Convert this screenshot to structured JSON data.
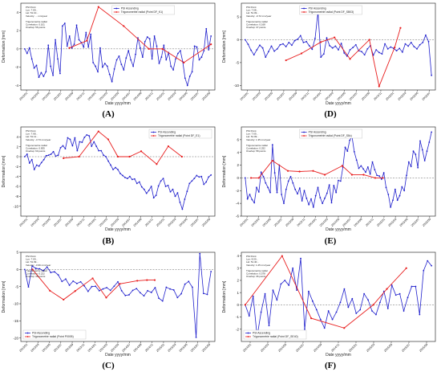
{
  "figure": {
    "colors": {
      "psi": "#1f1fcc",
      "trig": "#e81c1c",
      "zero": "#666666"
    },
    "common": {
      "xlabel": "Date yyyy/mm",
      "ylabel": "Deformation [mm]",
      "legend_psi": "PSI Ascending"
    }
  },
  "chart_data": [
    {
      "id": "A",
      "letter": "(A)",
      "type": "line",
      "legend_trig": "Trigonometrie radial (Point DF_K1)",
      "legend_place": "top-center",
      "ylim": [
        -4.5,
        5
      ],
      "yticks": [
        4,
        2,
        0,
        -2,
        -4
      ],
      "xticks": [
        "2013/01",
        "2013/03",
        "2013/05",
        "2013/07",
        "2013/09",
        "2013/11",
        "2014/01",
        "2014/03",
        "2014/05",
        "2014/07",
        "2014/09",
        "2014/11",
        "2015/01",
        "2015/03",
        "2015/05",
        "2015/07",
        "2015/09"
      ],
      "info": [
        "PSI Point",
        "Lon: 7.69...",
        "Lat: 51.10...",
        "Velocity: ... mm/year",
        "",
        "Trigonometrie radial",
        "Correlation: 0.101",
        "Overlap: 56 points"
      ],
      "series": [
        {
          "name": "PSI Ascending",
          "y": [
            0,
            -0.5,
            0.1,
            -1.1,
            -2.1,
            -1.8,
            -3.1,
            -2.6,
            -3.0,
            -2.5,
            0.4,
            -1.9,
            -2.9,
            1.0,
            -1.1,
            -2.7,
            2.5,
            2.8,
            0.3,
            1.4,
            0.1,
            0.5,
            2.6,
            1.0,
            0.7,
            0.2,
            1.8,
            0.2,
            1.6,
            -1.5,
            -1.9,
            -2.5,
            0.1,
            -2.0,
            -1.6,
            -1.9,
            -2.8,
            -3.6,
            -2.2,
            -1.2,
            -0.8,
            -1.7,
            -2.3,
            -1.0,
            -0.2,
            -1.2,
            -1.9,
            -0.6,
            1.2,
            0.1,
            -0.9,
            0.8,
            1.3,
            1.1,
            -1.1,
            1.4,
            0.3,
            -1.6,
            -0.9,
            0.4,
            -1.2,
            -0.4,
            -1.9,
            -2.3,
            -1.1,
            -0.5,
            -0.2,
            -1.4,
            -3.2,
            -4.0,
            -3.0,
            -2.5,
            0.3,
            0.2,
            -1.2,
            -0.9,
            -0.2,
            2.2,
            -0.1,
            1.4
          ]
        },
        {
          "name": "Trigonometrie radial (Point DF_K1)",
          "t": [
            0.25,
            0.34,
            0.4,
            0.53,
            0.66,
            0.73,
            0.84,
            0.98
          ],
          "y": [
            0.1,
            0.9,
            4.6,
            2.5,
            0,
            0,
            -1.5,
            0.5
          ]
        }
      ]
    },
    {
      "id": "D",
      "letter": "(D)",
      "type": "line",
      "legend_trig": "Trigonometrie radial (Point DF_SB03)",
      "legend_place": "top-left",
      "ylim": [
        -11,
        8
      ],
      "yticks": [
        5,
        0,
        -5,
        -10
      ],
      "xticks": [
        "2013/01",
        "2013/03",
        "2013/05",
        "2013/07",
        "2013/09",
        "2013/11",
        "2014/01",
        "2014/03",
        "2014/05",
        "2014/07",
        "2014/09",
        "2014/11",
        "2015/01",
        "2015/03",
        "2015/05",
        "2015/07"
      ],
      "info": [
        "PSI Point",
        "Lon: 7.68...",
        "Lat: 51.09...",
        "Velocity: -0.72 mm/year",
        "",
        "Trigonometrie radial",
        "Correlation: 0.168",
        "Overlap: 37 points"
      ],
      "series": [
        {
          "name": "PSI Ascending",
          "y": [
            0,
            -1.0,
            -2.3,
            -3.3,
            -2.2,
            -1.2,
            -1.8,
            -3.8,
            -2.6,
            -1.4,
            -2.5,
            -2.0,
            -1.1,
            -0.9,
            -1.5,
            -0.6,
            -1.2,
            -0.2,
            0.1,
            0.9,
            -0.6,
            -0.4,
            -1.3,
            -2.1,
            0.3,
            6.1,
            -3.8,
            -3.1,
            0.4,
            -1.3,
            -1.8,
            -1.4,
            -2.2,
            -0.8,
            -2.9,
            -3.6,
            -2.2,
            -1.7,
            -1.1,
            -2.4,
            -2.6,
            -3.3,
            -2.0,
            -1.3,
            -3.4,
            -2.2,
            -2.8,
            -3.1,
            -0.9,
            -2.0,
            -1.6,
            -1.9,
            -2.4,
            -1.9,
            -2.7,
            -0.9,
            -1.4,
            -0.6,
            -1.5,
            -2.0,
            -1.1,
            -0.6,
            1.0,
            -0.4,
            -7.8
          ]
        },
        {
          "name": "Trigonometrie radial (Point DF_SB03)",
          "t": [
            0.23,
            0.31,
            0.41,
            0.48,
            0.56,
            0.66,
            0.71,
            0.79,
            0.82
          ],
          "y": [
            -4.5,
            -3.0,
            -0.5,
            0.5,
            -4.2,
            0,
            -10.2,
            -1.7,
            2.6
          ]
        }
      ]
    },
    {
      "id": "B",
      "letter": "(B)",
      "type": "line",
      "legend_trig": "Trigonometrie radial (Point DF_E1)",
      "legend_place": "top-right",
      "ylim": [
        -12,
        6
      ],
      "yticks": [
        4,
        2,
        0,
        -2,
        -4,
        -6,
        -8,
        -10
      ],
      "xticks": [
        "2013/01",
        "2013/03",
        "2013/05",
        "2013/07",
        "2013/09",
        "2013/11",
        "2014/01",
        "2014/03",
        "2014/05",
        "2014/07",
        "2014/09",
        "2014/11",
        "2015/01",
        "2015/03",
        "2015/05",
        "2015/07",
        "2015/09"
      ],
      "info": [
        "PSI Point",
        "Lon: 7.68...",
        "Lat: 51.11...",
        "Velocity: -3.73 mm/year",
        "",
        "Trigonometrie radial",
        "Correlation: 0.835",
        "Overlap: 60 points"
      ],
      "series": [
        {
          "name": "PSI Ascending",
          "y": [
            0,
            0.5,
            -1.3,
            -0.6,
            -2.6,
            -1.7,
            -1.9,
            -1.2,
            -0.6,
            0.2,
            0.3,
            0.5,
            1.0,
            0.1,
            0.3,
            1.8,
            2.2,
            1.6,
            3.8,
            3.5,
            2.2,
            3.8,
            1.2,
            3.0,
            2.9,
            3.9,
            4.4,
            4.2,
            2.1,
            3.0,
            2.1,
            1.2,
            1.2,
            0.3,
            0,
            -0.9,
            -1.7,
            -2.6,
            -2.2,
            -2.6,
            -3.4,
            -3.8,
            -4.2,
            -4.4,
            -4.0,
            -4.6,
            -4.5,
            -5.4,
            -5.1,
            -6.1,
            -6.6,
            -7.4,
            -6.8,
            -6.0,
            -8.3,
            -7.8,
            -5.9,
            -4.9,
            -4.4,
            -6.0,
            -5.8,
            -7.1,
            -6.6,
            -8.0,
            -7.3,
            -9.2,
            -10.6,
            -8.6,
            -7.0,
            -5.4,
            -4.9,
            -4.4,
            -3.8,
            -4.1,
            -4.0,
            -5.6,
            -5.1,
            -4.1,
            -3.7
          ]
        },
        {
          "name": "Trigonometrie radial (Point DF_E1)",
          "t": [
            0.22,
            0.3,
            0.4,
            0.45,
            0.5,
            0.56,
            0.62,
            0.7,
            0.76,
            0.83
          ],
          "y": [
            -0.3,
            0,
            5.1,
            3.5,
            0,
            0,
            1.1,
            -1.5,
            2.1,
            0
          ]
        }
      ]
    },
    {
      "id": "E",
      "letter": "(E)",
      "type": "line",
      "legend_trig": "Trigonometrie radial (Point DF_S8c)",
      "legend_place": "top-left",
      "ylim": [
        -6,
        8
      ],
      "yticks": [
        6,
        4,
        2,
        0,
        -2,
        -4,
        -6
      ],
      "xticks": [
        "2013/01",
        "2013/03",
        "2013/05",
        "2013/07",
        "2013/09",
        "2013/11",
        "2014/01",
        "2014/03",
        "2014/05",
        "2014/07",
        "2014/09",
        "2014/11",
        "2015/01",
        "2015/03",
        "2015/05",
        "2015/07",
        "2015/09"
      ],
      "info": [
        "PSI Point",
        "Lon: 7.69...",
        "Lat: 51.09...",
        "Velocity: 1.35 mm/year",
        "",
        "Trigonometrie radial",
        "Correlation: 0.252",
        "Overlap: 58 points"
      ],
      "series": [
        {
          "name": "PSI Ascending",
          "y": [
            0,
            -3.3,
            -2.6,
            -3.4,
            -3.9,
            -1.5,
            -2.2,
            0.9,
            0.2,
            -0.8,
            -1.5,
            -2.3,
            5.2,
            0.8,
            -2.3,
            2.0,
            -2.6,
            -4.0,
            -1.8,
            -0.5,
            0.2,
            -0.8,
            -1.8,
            -2.5,
            -1.6,
            -3.6,
            -2.0,
            -3.2,
            -4.2,
            -3.3,
            -4.6,
            -2.8,
            -1.5,
            -3.1,
            -4.0,
            -3.2,
            -2.4,
            -1.1,
            -3.9,
            -1.2,
            -2.3,
            -0.4,
            -0.5,
            1.7,
            4.8,
            4.2,
            5.9,
            6.5,
            4.1,
            2.8,
            1.5,
            1.9,
            1.4,
            0.9,
            1.7,
            0.6,
            2.5,
            1.3,
            0.4,
            0.3,
            -0.2,
            0.8,
            -1.5,
            -2.6,
            -4.6,
            -3.5,
            -1.8,
            -3.5,
            -2.8,
            -1.4,
            -2.0,
            0.4,
            2.5,
            1.8,
            4.2,
            3.7,
            1.6,
            5.8,
            4.4,
            2.7,
            4.2,
            5.6,
            7.2
          ]
        },
        {
          "name": "Trigonometrie radial (Point DF_S8c)",
          "t": [
            0.05,
            0.09,
            0.16,
            0.24,
            0.3,
            0.37,
            0.43,
            0.52,
            0.57,
            0.63,
            0.69,
            0.73
          ],
          "y": [
            0,
            0,
            2.7,
            1.1,
            1.0,
            1.1,
            0.5,
            1.9,
            0.5,
            0.5,
            0,
            0
          ]
        }
      ]
    },
    {
      "id": "C",
      "letter": "(C)",
      "type": "line",
      "legend_trig": "Trigonometrie radial (Point P0005)",
      "legend_place": "bottom-left",
      "ylim": [
        -21,
        5
      ],
      "yticks": [
        5,
        0,
        -5,
        -10,
        -15,
        -20
      ],
      "xticks": [
        "2013/01",
        "2013/03",
        "2013/05",
        "2013/07",
        "2013/09",
        "2013/11",
        "2014/01",
        "2014/03",
        "2014/05",
        "2014/07",
        "2014/09",
        "2014/11",
        "2015/01",
        "2015/03",
        "2015/05",
        "2015/07",
        "2015/09"
      ],
      "info": [
        "PSI Point",
        "Lon: 7.69...",
        "Lat: 51.09...",
        "Velocity: -0.96 mm/year",
        "",
        "Trigonometrie radial",
        "Correlation: 0.222",
        "Overlap: 36 points"
      ],
      "series": [
        {
          "name": "PSI Ascending",
          "y": [
            0,
            -5.1,
            1.0,
            0.3,
            0.2,
            -0.4,
            0.7,
            -0.9,
            -0.7,
            -1.6,
            -3.5,
            -2.8,
            -4.6,
            -3.4,
            -4.1,
            -3.6,
            -4.8,
            -6.4,
            -5.0,
            -4.9,
            -6.2,
            -5.7,
            -5.3,
            -6.1,
            -4.9,
            -3.6,
            -6.2,
            -7.6,
            -7.4,
            -6.1,
            -5.6,
            -6.8,
            -7.7,
            -6.2,
            -6.7,
            -5.3,
            -8.4,
            -9.2,
            -5.2,
            -5.7,
            -6.0,
            -8.2,
            -7.1,
            -4.3,
            -3.5,
            -5.2,
            -19.8,
            4.6,
            -7.0,
            -7.3,
            -0.6
          ]
        },
        {
          "name": "Trigonometrie radial (Point P0005)",
          "t": [
            0.06,
            0.15,
            0.22,
            0.28,
            0.37,
            0.44,
            0.51,
            0.6,
            0.65,
            0.69
          ],
          "y": [
            0,
            -6.2,
            -8.8,
            -6.3,
            -2.6,
            -8.2,
            -4.2,
            -3.3,
            -3.1,
            -3.1
          ]
        }
      ]
    },
    {
      "id": "F",
      "letter": "(F)",
      "type": "line",
      "legend_trig": "Trigonometrie radial (Point DF_SE40)",
      "legend_place": "bottom-left",
      "ylim": [
        -3,
        4.3
      ],
      "yticks": [
        4,
        3,
        2,
        1,
        0,
        -1,
        -2
      ],
      "xticks": [
        "2014/01",
        "2014/03",
        "2014/05",
        "2014/07",
        "2014/09",
        "2014/11",
        "2015/01",
        "2015/03",
        "2015/05",
        "2015/07",
        "2015/09"
      ],
      "info": [
        "PSI Point",
        "Lon: 8.00...",
        "Lat: 51.40...",
        "Velocity: 1.25 mm/year",
        "",
        "Trigonometrie radial",
        "Correlation: 0.578",
        "Overlap: 36 points"
      ],
      "series": [
        {
          "name": "PSI Ascending",
          "y": [
            0,
            -0.9,
            0.7,
            -2.6,
            -0.6,
            0.9,
            -1.7,
            1.2,
            0.4,
            1.7,
            2.0,
            1.6,
            3.0,
            1.2,
            3.8,
            -2.0,
            1.1,
            0.3,
            -0.4,
            -1.2,
            -1.9,
            -0.5,
            -1.2,
            -0.6,
            0.2,
            1.3,
            -0.2,
            0.5,
            -0.7,
            -0.4,
            0.9,
            0.4,
            -0.5,
            -0.8,
            0.2,
            1.1,
            -0.3,
            1.6,
            0.8,
            0.9,
            -0.5,
            0.6,
            1.5,
            1.5,
            -0.8,
            2.8,
            3.6,
            3.2
          ]
        },
        {
          "name": "Trigonometrie radial (Point DF_SE40)",
          "t": [
            0.02,
            0.21,
            0.36,
            0.53,
            0.68,
            0.75,
            0.85
          ],
          "y": [
            0,
            4.0,
            -1.1,
            -1.9,
            0,
            1.3,
            3.0
          ]
        }
      ]
    }
  ]
}
